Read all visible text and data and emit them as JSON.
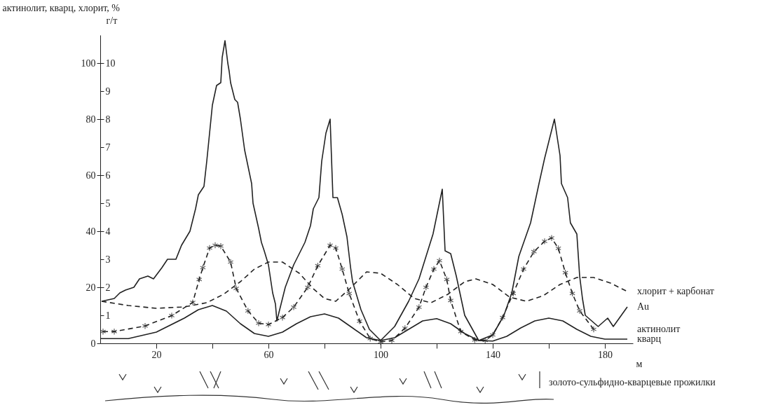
{
  "chart_data": {
    "type": "line",
    "xlabel": "м",
    "ylabel": "актинолит, кварц, хлорит, %",
    "y2label": "г/т",
    "xlim": [
      0,
      190
    ],
    "xticks": [
      20,
      {
        "value": 40,
        "label": null
      },
      60,
      {
        "value": 80,
        "label": null
      },
      100,
      {
        "value": 120,
        "label": null
      },
      140,
      {
        "value": 160,
        "label": null
      },
      180
    ],
    "ylim": [
      0,
      110
    ],
    "yticks": [
      0,
      20,
      40,
      60,
      80,
      100
    ],
    "y2lim": [
      0,
      11
    ],
    "y2ticks": [
      1,
      2,
      3,
      4,
      5,
      6,
      7,
      8,
      9,
      10
    ],
    "annotations": [
      "золото-сульфидно-кварцевые прожилки"
    ],
    "series": [
      {
        "name": "хлорит + карбонат",
        "color": "#222222",
        "line_style": "dashed",
        "x": [
          0.5,
          10,
          20,
          30,
          38,
          44,
          50,
          55,
          60,
          65,
          71,
          76,
          80,
          84,
          89,
          95,
          100,
          106,
          112,
          118,
          124,
          130,
          134,
          140,
          146,
          152,
          158,
          164,
          170,
          176,
          182,
          188
        ],
        "values": [
          15,
          13.5,
          12.5,
          13,
          14.5,
          17.5,
          22,
          26.5,
          29,
          29,
          25,
          19.5,
          16,
          15,
          19.5,
          25.5,
          25,
          21,
          16,
          14.5,
          17.5,
          22,
          23,
          21,
          16.5,
          15,
          17,
          21,
          23.5,
          23.5,
          21.5,
          18.5
        ]
      },
      {
        "name": "Au",
        "color": "#222222",
        "line_style": "solid",
        "axis": "y2",
        "x": [
          0.5,
          5,
          7,
          9,
          12,
          14,
          17,
          19,
          22,
          24,
          27,
          29,
          32,
          34,
          35,
          37,
          38,
          39,
          40,
          41.5,
          43,
          43.5,
          44.5,
          45.5,
          46,
          46.5,
          48,
          49,
          50,
          51.5,
          54,
          54.5,
          56.5,
          57.5,
          58.5,
          60,
          61.5,
          62.5,
          63,
          66,
          69,
          71,
          73,
          75,
          76,
          78,
          79,
          80.5,
          82,
          83,
          84.6,
          86.3,
          88,
          89.3,
          90,
          93,
          96,
          100,
          105,
          110,
          113.7,
          116.2,
          118.7,
          122,
          123,
          125,
          127,
          130,
          135,
          140,
          144,
          146.8,
          149.3,
          153.5,
          156.5,
          158.5,
          162,
          164,
          164.5,
          166.7,
          167.7,
          170,
          171,
          172,
          173,
          177.6,
          181,
          183,
          188
        ],
        "values": [
          1.5,
          1.6,
          1.8,
          1.9,
          2.0,
          2.3,
          2.4,
          2.3,
          2.7,
          3.0,
          3.0,
          3.5,
          4.0,
          4.8,
          5.3,
          5.6,
          6.5,
          7.5,
          8.5,
          9.2,
          9.3,
          10.2,
          10.8,
          10.0,
          9.7,
          9.3,
          8.7,
          8.6,
          8.0,
          6.9,
          5.7,
          5.0,
          4.1,
          3.6,
          3.3,
          2.8,
          1.8,
          1.4,
          0.8,
          2.0,
          2.8,
          3.2,
          3.6,
          4.2,
          4.8,
          5.2,
          6.5,
          7.5,
          8.0,
          5.2,
          5.2,
          4.6,
          3.8,
          2.7,
          2.2,
          1.2,
          0.5,
          0.1,
          0.6,
          1.5,
          2.3,
          3.1,
          3.9,
          5.5,
          3.3,
          3.2,
          2.4,
          1.0,
          0.1,
          0.3,
          1.0,
          1.8,
          3.1,
          4.3,
          5.7,
          6.6,
          8.0,
          6.7,
          5.7,
          5.2,
          4.3,
          3.9,
          2.4,
          1.6,
          1.0,
          0.6,
          0.9,
          0.6,
          1.3
        ]
      },
      {
        "name": "актинолит",
        "color": "#222222",
        "line_style": "dashed",
        "marker": "cross",
        "x": [
          1,
          5,
          16,
          25.5,
          33,
          35.3,
          36.6,
          39,
          41,
          43,
          46.5,
          48.5,
          52.7,
          56.5,
          60,
          65,
          69,
          74,
          77.6,
          82,
          84,
          86.3,
          88.8,
          92.5,
          96.3,
          100,
          104,
          108.7,
          113.7,
          116.2,
          119,
          121,
          123.6,
          125,
          128.6,
          133.6,
          137.3,
          140,
          143.5,
          147.3,
          151,
          154.7,
          158.5,
          161,
          163.4,
          165.9,
          168.4,
          171,
          176
        ],
        "values": [
          4.2,
          4.2,
          6.2,
          9.9,
          14.6,
          22.8,
          27,
          34,
          35,
          34.7,
          29,
          19.6,
          11.6,
          7.2,
          6.7,
          9.2,
          12.9,
          20,
          27.7,
          35,
          34,
          26.5,
          17.8,
          7.9,
          1.7,
          0.5,
          1.0,
          5.4,
          12.9,
          20,
          26.5,
          29.5,
          22.8,
          15.3,
          4.2,
          1.2,
          1.0,
          3,
          9.2,
          17.8,
          26.5,
          32.7,
          36.4,
          37.6,
          33.9,
          25.2,
          17.8,
          11.6,
          5
        ]
      },
      {
        "name": "кварц",
        "color": "#222222",
        "line_style": "solid",
        "x": [
          0,
          10,
          20,
          30,
          35,
          40,
          45,
          50,
          55,
          60,
          65,
          70,
          75,
          80,
          85,
          90,
          95,
          100,
          105,
          110,
          115,
          120,
          125,
          130,
          135,
          140,
          145,
          150,
          155,
          160,
          165,
          170,
          175,
          180,
          188
        ],
        "values": [
          1.7,
          1.7,
          4,
          9,
          12,
          13.5,
          11.5,
          7,
          3.5,
          2.5,
          4,
          7,
          9.5,
          10.5,
          9,
          5.5,
          2,
          1,
          2,
          5,
          8,
          8.8,
          7,
          3.5,
          1,
          0.8,
          2.5,
          5.5,
          8,
          9,
          8,
          5,
          2.5,
          1.5,
          1.5
        ]
      }
    ]
  }
}
